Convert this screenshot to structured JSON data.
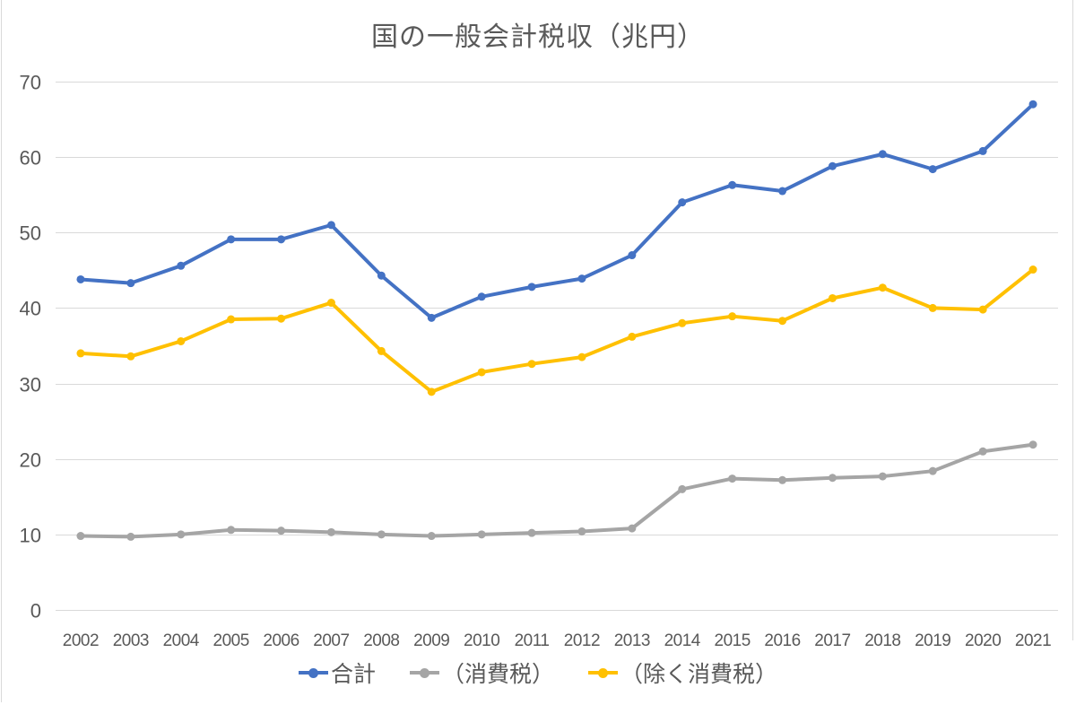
{
  "chart_data": {
    "type": "line",
    "title": "国の一般会計税収（兆円）",
    "categories": [
      "2002",
      "2003",
      "2004",
      "2005",
      "2006",
      "2007",
      "2008",
      "2009",
      "2010",
      "2011",
      "2012",
      "2013",
      "2014",
      "2015",
      "2016",
      "2017",
      "2018",
      "2019",
      "2020",
      "2021"
    ],
    "series": [
      {
        "key": "total",
        "name": "合計",
        "color": "#4472C4",
        "values": [
          43.8,
          43.3,
          45.6,
          49.1,
          49.1,
          51.0,
          44.3,
          38.7,
          41.5,
          42.8,
          43.9,
          47.0,
          54.0,
          56.3,
          55.5,
          58.8,
          60.4,
          58.4,
          60.8,
          67.0
        ]
      },
      {
        "key": "consumption-tax",
        "name": "（消費税）",
        "color": "#A5A5A5",
        "values": [
          9.8,
          9.7,
          10.0,
          10.6,
          10.5,
          10.3,
          10.0,
          9.8,
          10.0,
          10.2,
          10.4,
          10.8,
          16.0,
          17.4,
          17.2,
          17.5,
          17.7,
          18.4,
          21.0,
          21.9
        ]
      },
      {
        "key": "excluding-consumption-tax",
        "name": "（除く消費税）",
        "color": "#FFC000",
        "values": [
          34.0,
          33.6,
          35.6,
          38.5,
          38.6,
          40.7,
          34.3,
          28.9,
          31.5,
          32.6,
          33.5,
          36.2,
          38.0,
          38.9,
          38.3,
          41.3,
          42.7,
          40.0,
          39.8,
          45.1
        ]
      }
    ],
    "xlabel": "",
    "ylabel": "",
    "ylim": [
      0,
      70
    ],
    "yticks": [
      0,
      10,
      20,
      30,
      40,
      50,
      60,
      70
    ],
    "grid": "horizontal",
    "legend_position": "bottom",
    "gridline_color": "#D9D9D9",
    "axis_text_color": "#595959"
  }
}
